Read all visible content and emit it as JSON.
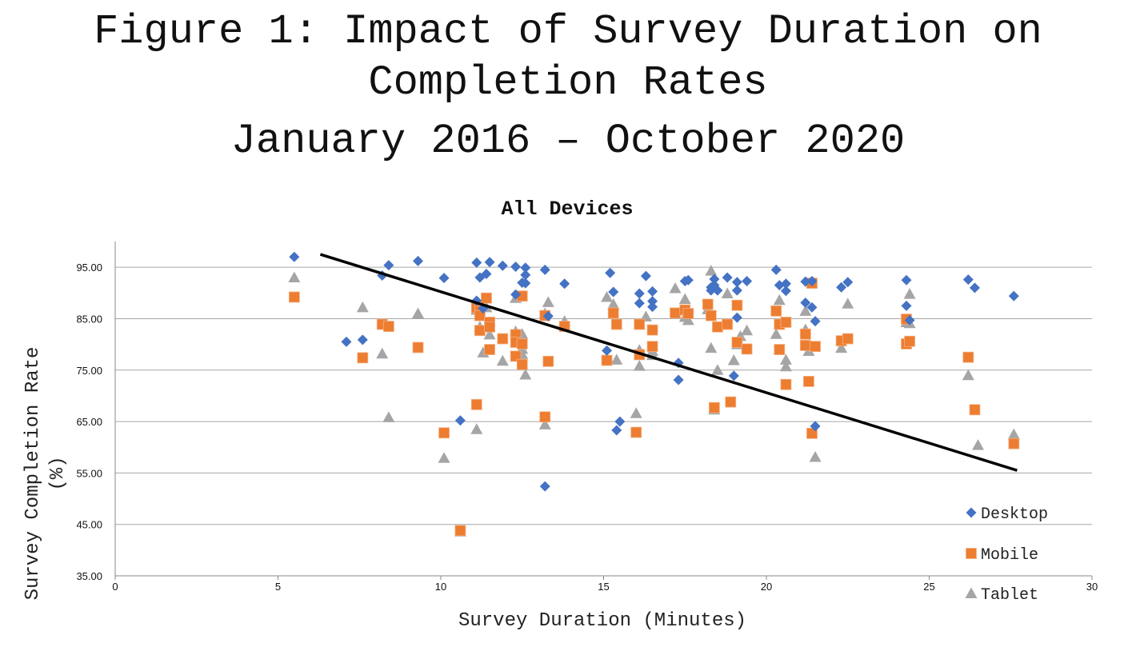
{
  "figure": {
    "title_line1": "Figure 1: Impact of Survey Duration on",
    "title_line2": "Completion Rates",
    "title_line3": "January 2016 – October 2020"
  },
  "chart_data": {
    "type": "scatter",
    "title": "All Devices",
    "xlabel": "Survey Duration (Minutes)",
    "ylabel_line1": "Survey Completion Rate",
    "ylabel_line2": "(%)",
    "xlim": [
      0,
      30
    ],
    "ylim": [
      35,
      100
    ],
    "xticks": [
      0,
      5,
      10,
      15,
      20,
      25,
      30
    ],
    "xtick_labels": [
      "0",
      "5",
      "10",
      "15",
      "20",
      "25",
      "30"
    ],
    "yticks": [
      35,
      45,
      55,
      65,
      75,
      85,
      95
    ],
    "ytick_labels": [
      "35.00",
      "45.00",
      "55.00",
      "65.00",
      "75.00",
      "85.00",
      "95.00"
    ],
    "grid": "horizontal",
    "legend_position": "bottom-right",
    "colors": {
      "Desktop": "#4472c4",
      "Mobile": "#ed7d31",
      "Tablet": "#a5a5a5",
      "trendline": "#000000"
    },
    "trendline": {
      "x": [
        6.3,
        27.7
      ],
      "y": [
        97.5,
        55.5
      ]
    },
    "series": [
      {
        "name": "Desktop",
        "marker": "diamond",
        "points": [
          [
            5.5,
            97.0
          ],
          [
            7.1,
            80.5
          ],
          [
            7.6,
            80.9
          ],
          [
            8.2,
            93.4
          ],
          [
            8.4,
            95.4
          ],
          [
            9.3,
            96.2
          ],
          [
            10.1,
            92.9
          ],
          [
            10.6,
            65.2
          ],
          [
            11.1,
            95.9
          ],
          [
            11.2,
            93.0
          ],
          [
            11.4,
            93.7
          ],
          [
            11.5,
            96.0
          ],
          [
            11.9,
            95.3
          ],
          [
            11.1,
            88.5
          ],
          [
            11.3,
            87.0
          ],
          [
            12.3,
            95.1
          ],
          [
            12.5,
            92.0
          ],
          [
            12.6,
            91.9
          ],
          [
            12.6,
            94.9
          ],
          [
            12.6,
            93.5
          ],
          [
            12.3,
            89.7
          ],
          [
            13.2,
            94.5
          ],
          [
            13.3,
            85.5
          ],
          [
            13.8,
            91.8
          ],
          [
            13.2,
            52.4
          ],
          [
            15.2,
            93.9
          ],
          [
            15.3,
            90.2
          ],
          [
            15.1,
            78.8
          ],
          [
            15.4,
            63.3
          ],
          [
            15.5,
            65.0
          ],
          [
            16.1,
            89.9
          ],
          [
            16.1,
            88.0
          ],
          [
            16.3,
            93.3
          ],
          [
            16.5,
            88.4
          ],
          [
            16.5,
            87.3
          ],
          [
            16.5,
            90.3
          ],
          [
            17.3,
            76.4
          ],
          [
            17.3,
            73.1
          ],
          [
            17.5,
            92.3
          ],
          [
            17.6,
            92.5
          ],
          [
            18.3,
            91.1
          ],
          [
            18.3,
            90.5
          ],
          [
            18.4,
            91.5
          ],
          [
            18.4,
            92.7
          ],
          [
            18.5,
            90.5
          ],
          [
            18.8,
            93.0
          ],
          [
            19.0,
            73.9
          ],
          [
            19.1,
            90.5
          ],
          [
            19.1,
            92.1
          ],
          [
            19.4,
            92.3
          ],
          [
            19.1,
            85.2
          ],
          [
            20.3,
            94.5
          ],
          [
            20.4,
            91.5
          ],
          [
            20.6,
            91.8
          ],
          [
            20.6,
            90.4
          ],
          [
            21.2,
            92.2
          ],
          [
            21.2,
            88.1
          ],
          [
            21.4,
            92.3
          ],
          [
            21.4,
            87.2
          ],
          [
            21.5,
            84.5
          ],
          [
            21.5,
            64.1
          ],
          [
            22.3,
            91.1
          ],
          [
            22.5,
            92.1
          ],
          [
            24.3,
            92.5
          ],
          [
            24.3,
            87.5
          ],
          [
            24.4,
            84.7
          ],
          [
            26.2,
            92.6
          ],
          [
            26.4,
            91.0
          ],
          [
            27.6,
            89.4
          ]
        ]
      },
      {
        "name": "Mobile",
        "marker": "square",
        "points": [
          [
            5.5,
            89.2
          ],
          [
            7.6,
            77.4
          ],
          [
            8.2,
            83.9
          ],
          [
            8.4,
            83.5
          ],
          [
            9.3,
            79.4
          ],
          [
            10.1,
            62.8
          ],
          [
            10.6,
            43.8
          ],
          [
            11.1,
            87.1
          ],
          [
            11.2,
            86.5
          ],
          [
            11.2,
            85.6
          ],
          [
            11.2,
            82.7
          ],
          [
            11.1,
            68.3
          ],
          [
            11.4,
            89.0
          ],
          [
            11.5,
            84.3
          ],
          [
            11.5,
            83.4
          ],
          [
            11.5,
            79.0
          ],
          [
            11.9,
            81.1
          ],
          [
            12.3,
            81.9
          ],
          [
            12.3,
            80.4
          ],
          [
            12.3,
            77.7
          ],
          [
            12.5,
            89.4
          ],
          [
            12.5,
            80.1
          ],
          [
            12.5,
            76.1
          ],
          [
            13.2,
            85.6
          ],
          [
            13.2,
            65.9
          ],
          [
            13.3,
            76.7
          ],
          [
            13.8,
            83.5
          ],
          [
            15.1,
            76.9
          ],
          [
            15.3,
            86.1
          ],
          [
            15.4,
            83.9
          ],
          [
            16.0,
            62.9
          ],
          [
            16.1,
            83.9
          ],
          [
            16.1,
            78.0
          ],
          [
            16.5,
            82.8
          ],
          [
            16.5,
            79.6
          ],
          [
            17.2,
            86.1
          ],
          [
            17.5,
            86.7
          ],
          [
            17.6,
            86.0
          ],
          [
            18.2,
            87.8
          ],
          [
            18.3,
            85.6
          ],
          [
            18.4,
            67.7
          ],
          [
            18.5,
            83.4
          ],
          [
            18.8,
            83.9
          ],
          [
            18.9,
            68.8
          ],
          [
            19.1,
            87.6
          ],
          [
            19.1,
            80.4
          ],
          [
            19.4,
            79.1
          ],
          [
            20.3,
            86.5
          ],
          [
            20.4,
            83.9
          ],
          [
            20.4,
            79.0
          ],
          [
            20.6,
            84.3
          ],
          [
            20.6,
            72.2
          ],
          [
            21.2,
            79.8
          ],
          [
            21.2,
            82.0
          ],
          [
            21.3,
            72.8
          ],
          [
            21.4,
            91.9
          ],
          [
            21.4,
            62.7
          ],
          [
            21.5,
            79.6
          ],
          [
            22.3,
            80.7
          ],
          [
            22.5,
            81.1
          ],
          [
            24.3,
            84.9
          ],
          [
            24.3,
            80.1
          ],
          [
            24.4,
            80.6
          ],
          [
            26.2,
            77.5
          ],
          [
            26.4,
            67.3
          ],
          [
            27.6,
            60.7
          ]
        ]
      },
      {
        "name": "Tablet",
        "marker": "triangle",
        "points": [
          [
            5.5,
            93.0
          ],
          [
            7.6,
            87.2
          ],
          [
            8.2,
            78.2
          ],
          [
            8.4,
            65.8
          ],
          [
            9.3,
            86.0
          ],
          [
            10.1,
            57.9
          ],
          [
            10.6,
            43.6
          ],
          [
            11.1,
            86.7
          ],
          [
            11.2,
            83.4
          ],
          [
            11.1,
            63.5
          ],
          [
            11.3,
            78.4
          ],
          [
            11.4,
            87.2
          ],
          [
            11.5,
            81.9
          ],
          [
            11.9,
            76.8
          ],
          [
            12.3,
            89.0
          ],
          [
            12.3,
            82.5
          ],
          [
            12.5,
            82.0
          ],
          [
            12.5,
            78.1
          ],
          [
            12.5,
            79.1
          ],
          [
            12.6,
            74.1
          ],
          [
            13.2,
            86.0
          ],
          [
            13.2,
            64.4
          ],
          [
            13.3,
            88.2
          ],
          [
            13.8,
            84.5
          ],
          [
            15.1,
            89.2
          ],
          [
            15.3,
            87.8
          ],
          [
            15.4,
            77.0
          ],
          [
            16.0,
            66.6
          ],
          [
            16.1,
            78.9
          ],
          [
            16.1,
            75.8
          ],
          [
            16.3,
            85.4
          ],
          [
            16.5,
            78.7
          ],
          [
            16.5,
            77.9
          ],
          [
            17.2,
            90.9
          ],
          [
            17.5,
            88.8
          ],
          [
            17.5,
            85.3
          ],
          [
            17.6,
            84.7
          ],
          [
            18.2,
            86.8
          ],
          [
            18.3,
            94.3
          ],
          [
            18.3,
            79.3
          ],
          [
            18.4,
            67.3
          ],
          [
            18.5,
            75.0
          ],
          [
            18.8,
            89.9
          ],
          [
            19.0,
            76.9
          ],
          [
            19.1,
            80.0
          ],
          [
            19.2,
            81.6
          ],
          [
            19.4,
            82.7
          ],
          [
            20.3,
            82.0
          ],
          [
            20.4,
            88.6
          ],
          [
            20.6,
            77.0
          ],
          [
            20.6,
            75.7
          ],
          [
            21.2,
            82.9
          ],
          [
            21.2,
            86.5
          ],
          [
            21.3,
            78.7
          ],
          [
            21.4,
            91.9
          ],
          [
            21.5,
            58.1
          ],
          [
            22.3,
            79.3
          ],
          [
            22.5,
            87.9
          ],
          [
            24.3,
            84.3
          ],
          [
            24.4,
            89.8
          ],
          [
            24.4,
            84.1
          ],
          [
            26.2,
            74.0
          ],
          [
            26.5,
            60.4
          ],
          [
            27.6,
            62.5
          ]
        ]
      }
    ]
  }
}
